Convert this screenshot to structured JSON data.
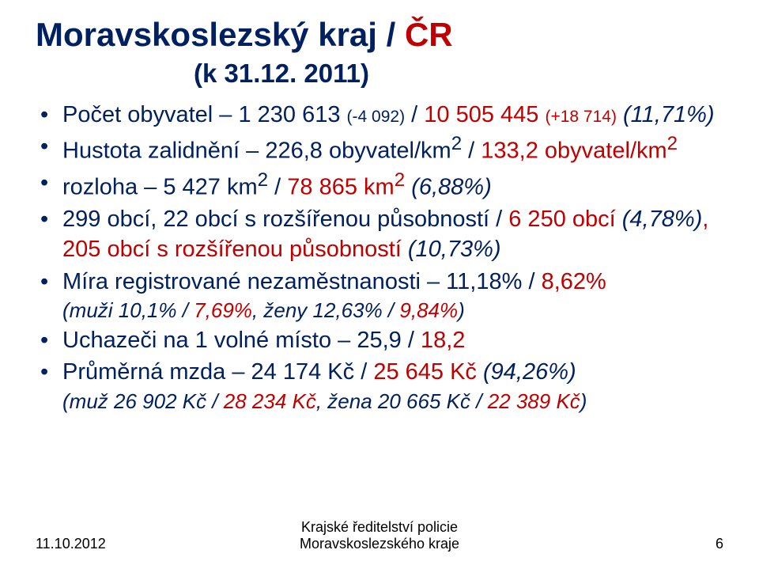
{
  "title": {
    "part1": "Moravskoslezský kraj ",
    "part2": "/ ",
    "part3": "ČR"
  },
  "subtitle": "(k 31.12. 2011)",
  "bullets": {
    "b1": {
      "a": "Počet obyvatel – 1 230 613 ",
      "b": "(-4 092)",
      "c": " / ",
      "d": "10 505 445 ",
      "e": "(+18 714)",
      "f": "  ",
      "g": "(11,71%)"
    },
    "b2": {
      "a": "Hustota zalidnění – 226,8 obyvatel/km",
      "sup1": "2",
      "b": " / ",
      "c": "133,2 obyvatel/km",
      "sup2": "2"
    },
    "b3": {
      "a": "rozloha – 5 427 km",
      "sup1": "2",
      "b": " / ",
      "c": "78 865 km",
      "sup2": "2",
      "d": "  ",
      "e": "(6,88%)"
    },
    "b4": {
      "a": "299 obcí, 22 obcí s rozšířenou působností / ",
      "b": "6 250 obcí ",
      "c": "(4,78%)",
      "d": ", 205 obcí s rozšířenou působností ",
      "e": "(10,73%)"
    },
    "b5": {
      "a": "Míra registrované nezaměstnanosti – 11,18% / ",
      "b": "8,62%",
      "c": "(muži 10,1% ",
      "d": "/",
      "e": " 7,69%",
      "f": ", ženy 12,63% ",
      "g": "/",
      "h": " 9,84%",
      "i": ")"
    },
    "b6": {
      "a": "Uchazeči na 1 volné místo – 25,9 / ",
      "b": "18,2"
    },
    "b7": {
      "a": "Průměrná mzda – 24 174 Kč / ",
      "b": "25 645 Kč ",
      "c": "(94,26%)",
      "d": "(muž 26 902 Kč ",
      "e": "/",
      "f": " 28 234 Kč",
      "g": ", žena 20 665 Kč ",
      "h": "/",
      "i": " 22 389 Kč",
      "j": ")"
    }
  },
  "footer": {
    "date": "11.10.2012",
    "center_l1": "Krajské ředitelství policie",
    "center_l2": "Moravskoslezského kraje",
    "page": "6"
  }
}
